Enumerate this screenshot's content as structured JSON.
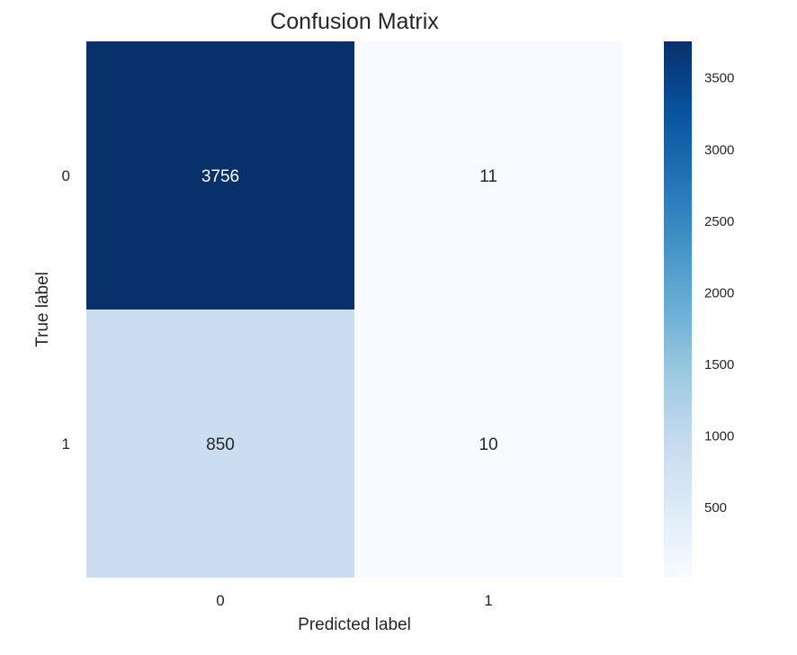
{
  "chart_data": {
    "type": "heatmap",
    "title": "Confusion Matrix",
    "xlabel": "Predicted label",
    "ylabel": "True label",
    "x_categories": [
      "0",
      "1"
    ],
    "y_categories": [
      "0",
      "1"
    ],
    "values": [
      [
        3756,
        11
      ],
      [
        850,
        10
      ]
    ],
    "colormap": "Blues",
    "color_range": [
      10,
      3756
    ],
    "colorbar_ticks": [
      500,
      1000,
      1500,
      2000,
      2500,
      3000,
      3500
    ],
    "grid": false
  }
}
